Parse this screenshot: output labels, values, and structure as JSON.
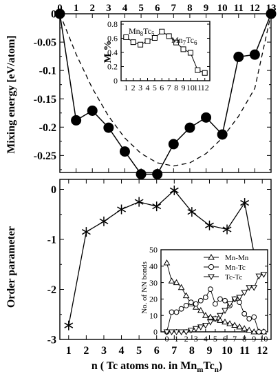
{
  "chart_data": [
    {
      "type": "line",
      "panel": "top",
      "ylabel": "Mixing energy [eV/atom]",
      "x_tick_labels": [
        "0",
        "1",
        "2",
        "3",
        "4",
        "5",
        "6",
        "7",
        "8",
        "9",
        "10",
        "11",
        "12",
        "13"
      ],
      "ylim": [
        -0.28,
        0.0
      ],
      "y_tick_labels": [
        "0",
        "-0.05",
        "-0.1",
        "-0.15",
        "-0.2",
        "-0.25"
      ],
      "series": [
        {
          "style": "filled-circle-line",
          "x": [
            0,
            1,
            2,
            3,
            4,
            5,
            6,
            7,
            8,
            9,
            10,
            11,
            12,
            13
          ],
          "y": [
            0.0,
            -0.188,
            -0.171,
            -0.201,
            -0.243,
            -0.283,
            -0.283,
            -0.23,
            -0.201,
            -0.183,
            -0.213,
            -0.076,
            -0.072,
            0.0
          ]
        },
        {
          "style": "dashed-curve",
          "x": [
            0,
            1,
            2,
            3,
            4,
            5,
            6,
            7,
            8,
            9,
            10,
            11,
            12,
            13
          ],
          "y": [
            0.0,
            -0.0712,
            -0.1315,
            -0.1808,
            -0.2192,
            -0.2466,
            -0.263,
            -0.2685,
            -0.263,
            -0.2466,
            -0.2192,
            -0.1808,
            -0.1315,
            0.0
          ]
        }
      ],
      "point_labels": [
        "0",
        "1",
        "2",
        "3",
        "4",
        "5",
        "6",
        "7",
        "8",
        "9",
        "10",
        "11",
        "12",
        "13"
      ],
      "inset": {
        "type": "line",
        "ylabel": "M %",
        "x_tick_labels": [
          "1",
          "2",
          "3",
          "4",
          "5",
          "6",
          "7",
          "8",
          "9",
          "10",
          "11",
          "12"
        ],
        "ylim": [
          0,
          0.8
        ],
        "y_tick_labels": [
          "0",
          "0.2",
          "0.4",
          "0.6",
          "0.8"
        ],
        "x": [
          1,
          2,
          3,
          4,
          5,
          6,
          7,
          8,
          9,
          10,
          11,
          12
        ],
        "y": [
          0.615,
          0.545,
          0.51,
          0.56,
          0.605,
          0.695,
          0.63,
          0.54,
          0.445,
          0.395,
          0.15,
          0.11
        ],
        "annotations": [
          {
            "base": "Mn",
            "sub": "8",
            "base2": "Tc",
            "sub2": "5"
          },
          {
            "base": "Mn",
            "sub": "7",
            "base2": "Tc",
            "sub2": "6"
          }
        ]
      }
    },
    {
      "type": "line",
      "panel": "bottom",
      "ylabel": "Order parameter",
      "xlabel": {
        "prefix": "n ( Tc atoms no. in Mn",
        "sub1": "m",
        "mid": "Tc",
        "sub2": "n",
        "suffix": ")"
      },
      "x_tick_labels": [
        "1",
        "2",
        "3",
        "4",
        "5",
        "6",
        "7",
        "8",
        "9",
        "10",
        "11",
        "12"
      ],
      "ylim": [
        -3,
        0.2
      ],
      "y_tick_labels": [
        "0",
        "-1",
        "-2",
        "-3"
      ],
      "series": [
        {
          "style": "asterisk-line",
          "x": [
            1,
            2,
            3,
            4,
            5,
            6,
            7,
            8,
            9,
            10,
            11,
            12
          ],
          "y": [
            -2.72,
            -0.85,
            -0.64,
            -0.4,
            -0.25,
            -0.34,
            -0.02,
            -0.45,
            -0.72,
            -0.8,
            -0.27,
            -2.17
          ]
        }
      ],
      "inset": {
        "type": "line",
        "ylabel": "No. of NN bonds",
        "x_tick_labels": [
          "0",
          "1",
          "2",
          "3",
          "4",
          "5",
          "6",
          "7",
          "8",
          "9",
          "10"
        ],
        "ylim": [
          0,
          50
        ],
        "y_tick_labels": [
          "0",
          "10",
          "20",
          "30",
          "40",
          "50"
        ],
        "series": [
          {
            "name": "Mn-Mn",
            "marker": "triangle-up",
            "x": [
              0,
              0.5,
              1,
              1.5,
              2,
              2.5,
              3,
              3.5,
              4,
              4.5,
              5,
              5.5,
              6,
              6.5,
              7,
              7.5,
              8,
              8.5,
              9,
              9.5,
              10
            ],
            "y": [
              42,
              31,
              30,
              27,
              22,
              17,
              15,
              13,
              10,
              9,
              8,
              7,
              6,
              5,
              4,
              3,
              2,
              1,
              0,
              0,
              0
            ]
          },
          {
            "name": "Mn-Tc",
            "marker": "circle",
            "x": [
              0,
              0.5,
              1,
              1.5,
              2,
              2.5,
              3,
              3.5,
              4,
              4.5,
              5,
              5.5,
              6,
              6.5,
              7,
              7.5,
              8,
              8.5,
              9,
              9.5,
              10
            ],
            "y": [
              0,
              12,
              12,
              14,
              16,
              18,
              17,
              19,
              21,
              26,
              17,
              20,
              19,
              16,
              20,
              18,
              11,
              8,
              9,
              0,
              0
            ]
          },
          {
            "name": "Tc-Tc",
            "marker": "triangle-down",
            "x": [
              0,
              0.5,
              1,
              1.5,
              2,
              2.5,
              3,
              3.5,
              4,
              4.5,
              5,
              5.5,
              6,
              6.5,
              7,
              7.5,
              8,
              8.5,
              9,
              9.5,
              10
            ],
            "y": [
              0,
              0,
              0,
              0,
              0,
              1,
              2,
              3,
              4,
              6,
              8,
              10,
              13,
              17,
              20,
              21,
              24,
              27,
              27,
              34,
              35
            ]
          }
        ]
      }
    }
  ]
}
